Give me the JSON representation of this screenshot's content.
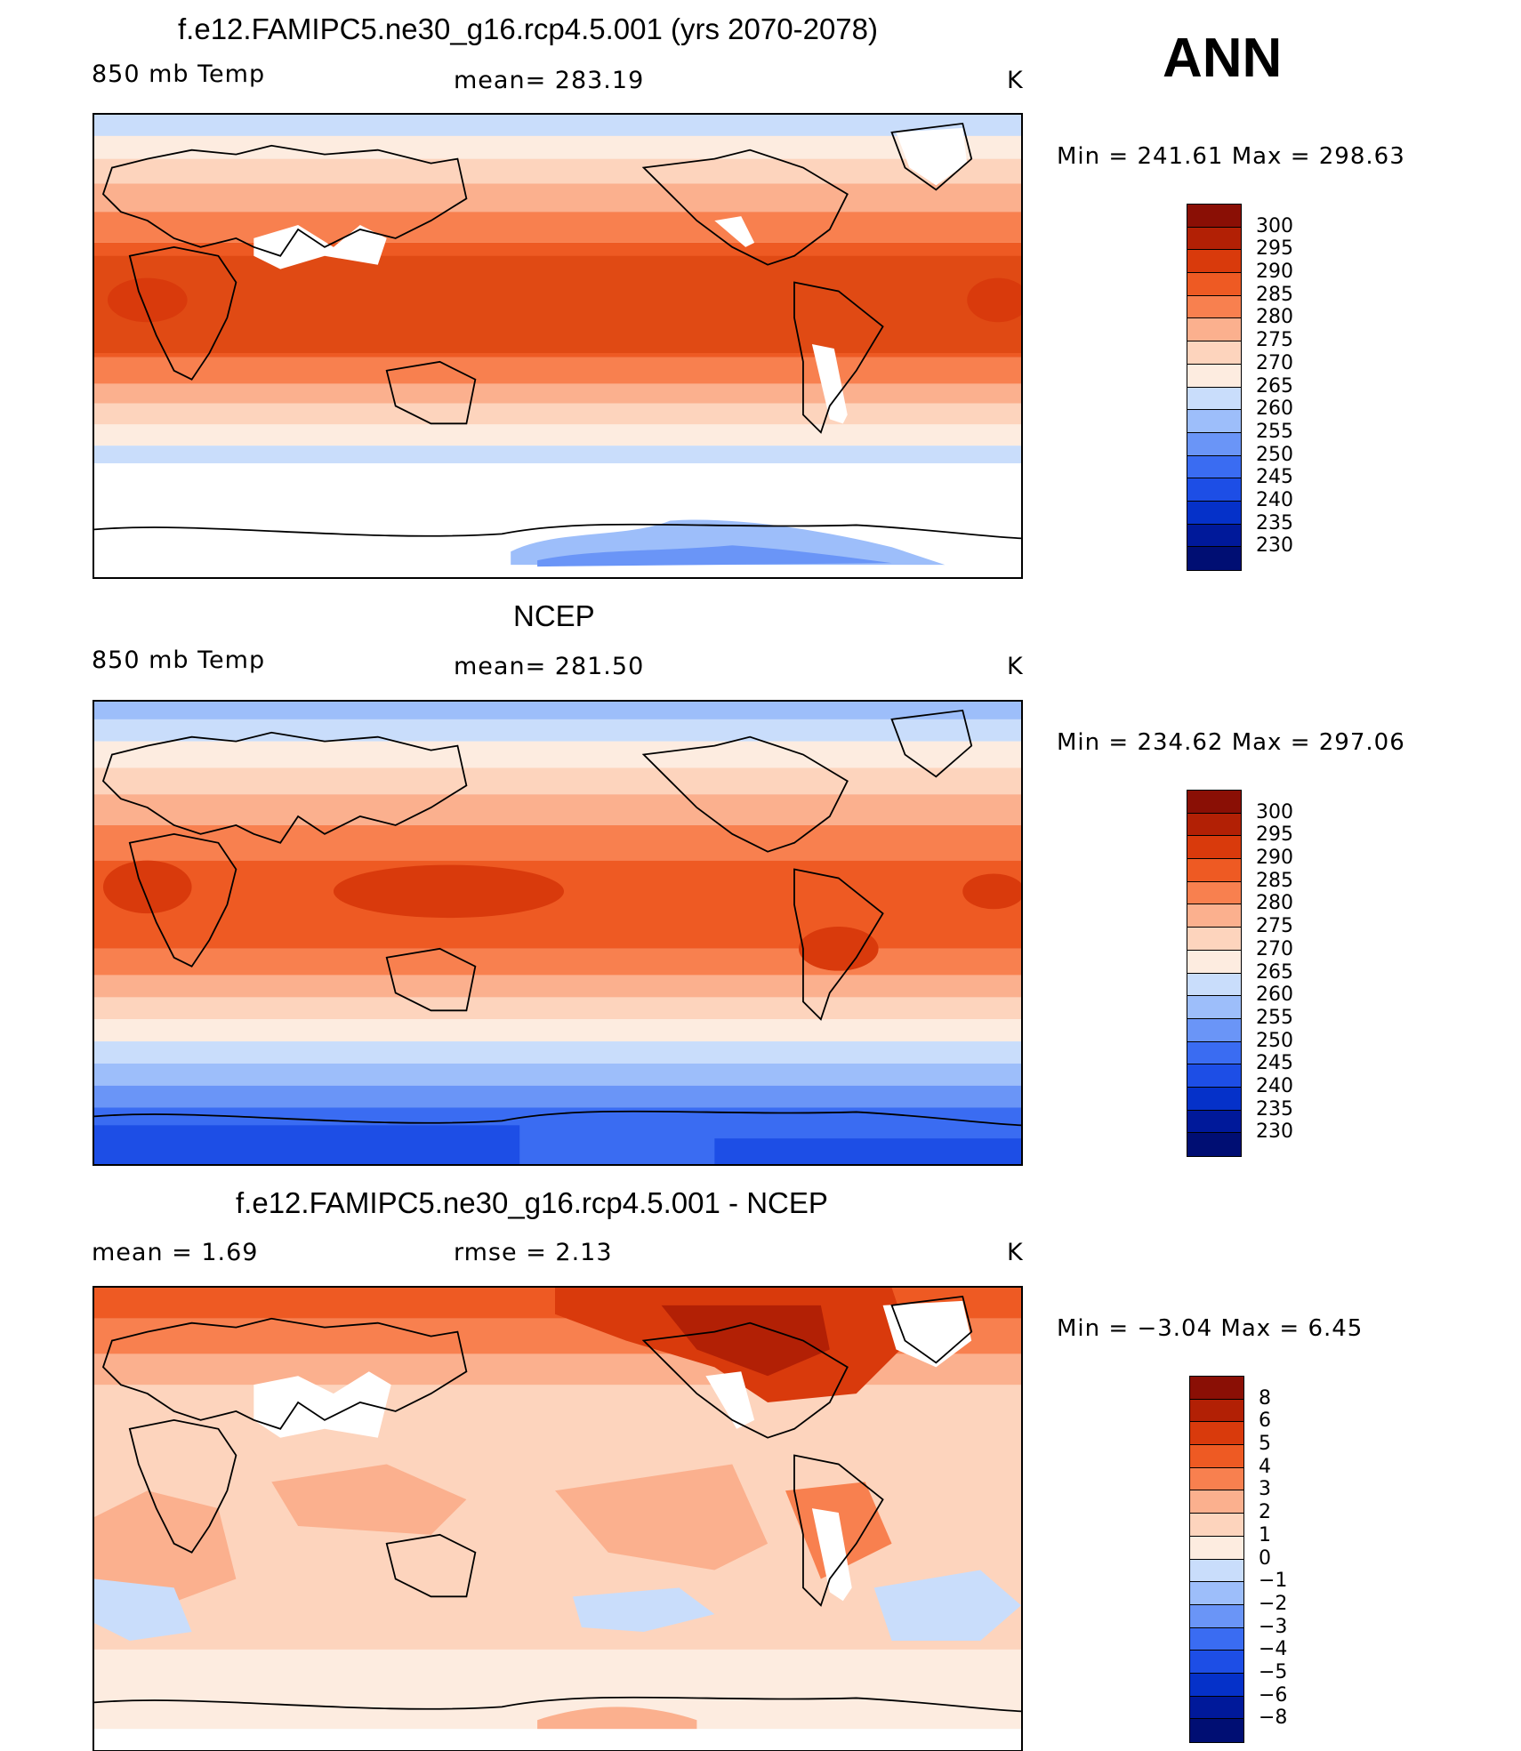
{
  "season": "ANN",
  "variable": "850 mb Temp",
  "colors": {
    "abs_scale": [
      "#000e73",
      "#00199a",
      "#0531c9",
      "#1d4ee6",
      "#3a6cf2",
      "#6a95f7",
      "#9dbefa",
      "#c9ddfb",
      "#fdece0",
      "#fdd4bd",
      "#fbb08e",
      "#f8804f",
      "#ee5a23",
      "#d93a0c",
      "#b22005",
      "#8a0f05"
    ],
    "diff_scale": [
      "#000e73",
      "#00199a",
      "#0531c9",
      "#1d4ee6",
      "#3a6cf2",
      "#6a95f7",
      "#9dbefa",
      "#c9ddfb",
      "#fdece0",
      "#fdd4bd",
      "#fbb08e",
      "#f8804f",
      "#ee5a23",
      "#d93a0c",
      "#b22005",
      "#8a0f05"
    ],
    "missing": "#ffffff",
    "coastline": "#000000"
  },
  "panels": [
    {
      "title": "f.e12.FAMIPC5.ne30_g16.rcp4.5.001 (yrs 2070-2078)",
      "left_label": "850 mb Temp",
      "center_label": "mean= 283.19",
      "units": "K",
      "minmax": "Min  =  241.61  Max  =  298.63",
      "colorbar_labels": [
        "300",
        "295",
        "290",
        "285",
        "280",
        "275",
        "270",
        "265",
        "260",
        "255",
        "250",
        "245",
        "240",
        "235",
        "230"
      ]
    },
    {
      "title": "NCEP",
      "left_label": "850 mb Temp",
      "center_label": "mean= 281.50",
      "units": "K",
      "minmax": "Min  =  234.62  Max  =  297.06",
      "colorbar_labels": [
        "300",
        "295",
        "290",
        "285",
        "280",
        "275",
        "270",
        "265",
        "260",
        "255",
        "250",
        "245",
        "240",
        "235",
        "230"
      ]
    },
    {
      "title": "f.e12.FAMIPC5.ne30_g16.rcp4.5.001 - NCEP",
      "left_label": "mean =     1.69",
      "center_label": "rmse =     2.13",
      "units": "K",
      "minmax": "Min  =   −3.04  Max  =     6.45",
      "colorbar_labels": [
        "8",
        "6",
        "5",
        "4",
        "3",
        "2",
        "1",
        "0",
        "−1",
        "−2",
        "−3",
        "−4",
        "−5",
        "−6",
        "−8"
      ]
    }
  ]
}
